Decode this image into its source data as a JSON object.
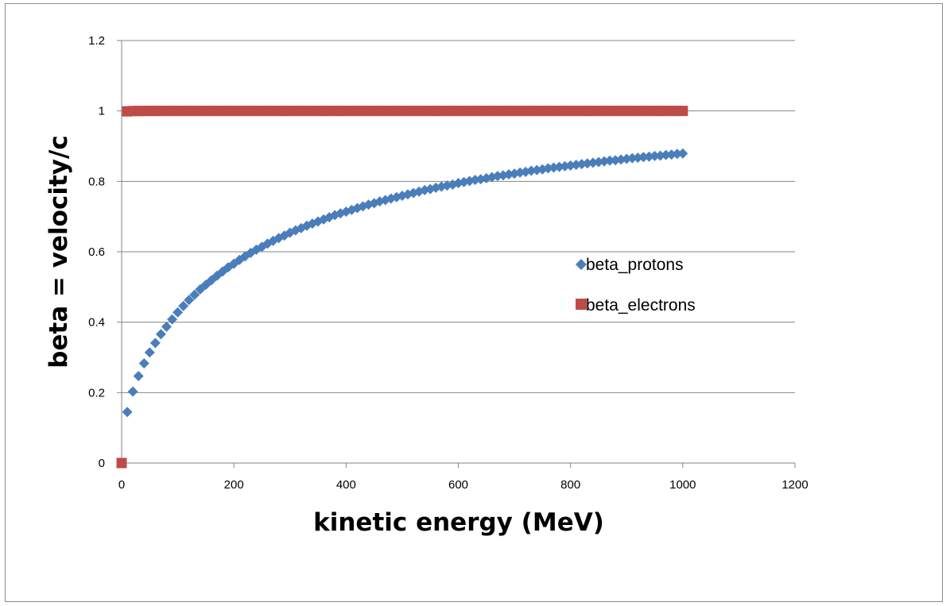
{
  "chart_data": {
    "type": "scatter",
    "title": "",
    "xlabel": "kinetic energy (MeV)",
    "ylabel": "beta = velocity/c",
    "xlim": [
      0,
      1200
    ],
    "ylim": [
      0,
      1.2
    ],
    "x_ticks": [
      "0",
      "200",
      "400",
      "600",
      "800",
      "1000",
      "1200"
    ],
    "y_ticks": [
      "0",
      "0.2",
      "0.4",
      "0.6",
      "0.8",
      "1",
      "1.2"
    ],
    "grid": "horizontal",
    "legend_position": "right",
    "series": [
      {
        "name": "beta_protons",
        "marker": "diamond",
        "color": "#4a7ebb",
        "x": [
          10,
          20,
          30,
          40,
          50,
          60,
          70,
          80,
          90,
          100,
          110,
          120,
          130,
          140,
          150,
          160,
          170,
          180,
          190,
          200,
          210,
          220,
          230,
          240,
          250,
          260,
          270,
          280,
          290,
          300,
          310,
          320,
          330,
          340,
          350,
          360,
          370,
          380,
          390,
          400,
          410,
          420,
          430,
          440,
          450,
          460,
          470,
          480,
          490,
          500,
          510,
          520,
          530,
          540,
          550,
          560,
          570,
          580,
          590,
          600,
          610,
          620,
          630,
          640,
          650,
          660,
          670,
          680,
          690,
          700,
          710,
          720,
          730,
          740,
          750,
          760,
          770,
          780,
          790,
          800,
          810,
          820,
          830,
          840,
          850,
          860,
          870,
          880,
          890,
          900,
          910,
          920,
          930,
          940,
          950,
          960,
          970,
          980,
          990,
          1000
        ],
        "y": [
          0.145,
          0.203,
          0.247,
          0.283,
          0.314,
          0.341,
          0.366,
          0.387,
          0.408,
          0.428,
          0.446,
          0.463,
          0.478,
          0.493,
          0.506,
          0.519,
          0.532,
          0.544,
          0.556,
          0.566,
          0.577,
          0.587,
          0.597,
          0.606,
          0.614,
          0.623,
          0.631,
          0.639,
          0.646,
          0.654,
          0.661,
          0.667,
          0.674,
          0.68,
          0.686,
          0.692,
          0.698,
          0.704,
          0.709,
          0.714,
          0.719,
          0.724,
          0.729,
          0.734,
          0.738,
          0.743,
          0.747,
          0.751,
          0.755,
          0.759,
          0.763,
          0.767,
          0.771,
          0.775,
          0.778,
          0.782,
          0.785,
          0.788,
          0.791,
          0.795,
          0.798,
          0.801,
          0.804,
          0.806,
          0.809,
          0.812,
          0.815,
          0.817,
          0.82,
          0.822,
          0.825,
          0.827,
          0.83,
          0.832,
          0.834,
          0.837,
          0.839,
          0.841,
          0.843,
          0.845,
          0.847,
          0.849,
          0.851,
          0.853,
          0.855,
          0.857,
          0.859,
          0.86,
          0.862,
          0.864,
          0.866,
          0.867,
          0.869,
          0.87,
          0.872,
          0.873,
          0.875,
          0.876,
          0.878,
          0.879
        ]
      },
      {
        "name": "beta_electrons",
        "marker": "square",
        "color": "#be4b48",
        "x": [
          0,
          10,
          20,
          30,
          40,
          50,
          60,
          70,
          80,
          90,
          100,
          110,
          120,
          130,
          140,
          150,
          160,
          170,
          180,
          190,
          200,
          210,
          220,
          230,
          240,
          250,
          260,
          270,
          280,
          290,
          300,
          310,
          320,
          330,
          340,
          350,
          360,
          370,
          380,
          390,
          400,
          410,
          420,
          430,
          440,
          450,
          460,
          470,
          480,
          490,
          500,
          510,
          520,
          530,
          540,
          550,
          560,
          570,
          580,
          590,
          600,
          610,
          620,
          630,
          640,
          650,
          660,
          670,
          680,
          690,
          700,
          710,
          720,
          730,
          740,
          750,
          760,
          770,
          780,
          790,
          800,
          810,
          820,
          830,
          840,
          850,
          860,
          870,
          880,
          890,
          900,
          910,
          920,
          930,
          940,
          950,
          960,
          970,
          980,
          990,
          1000
        ],
        "y": [
          0,
          0.9988,
          0.9997,
          0.9999,
          0.9999,
          1,
          1,
          1,
          1,
          1,
          1,
          1,
          1,
          1,
          1,
          1,
          1,
          1,
          1,
          1,
          1,
          1,
          1,
          1,
          1,
          1,
          1,
          1,
          1,
          1,
          1,
          1,
          1,
          1,
          1,
          1,
          1,
          1,
          1,
          1,
          1,
          1,
          1,
          1,
          1,
          1,
          1,
          1,
          1,
          1,
          1,
          1,
          1,
          1,
          1,
          1,
          1,
          1,
          1,
          1,
          1,
          1,
          1,
          1,
          1,
          1,
          1,
          1,
          1,
          1,
          1,
          1,
          1,
          1,
          1,
          1,
          1,
          1,
          1,
          1,
          1,
          1,
          1,
          1,
          1,
          1,
          1,
          1,
          1,
          1,
          1,
          1,
          1,
          1,
          1,
          1,
          1,
          1,
          1,
          1,
          1
        ]
      }
    ]
  }
}
